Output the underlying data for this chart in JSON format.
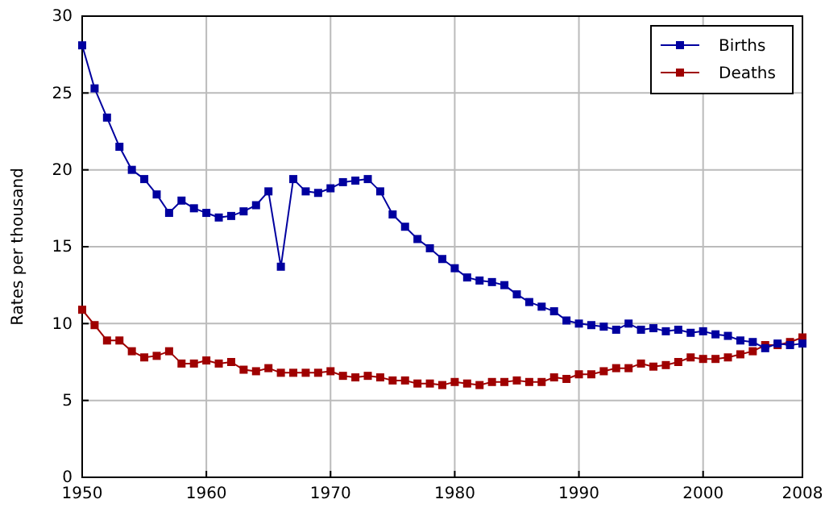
{
  "chart_data": {
    "type": "line",
    "ylabel": "Rates per thousand",
    "x": [
      1950,
      1951,
      1952,
      1953,
      1954,
      1955,
      1956,
      1957,
      1958,
      1959,
      1960,
      1961,
      1962,
      1963,
      1964,
      1965,
      1966,
      1967,
      1968,
      1969,
      1970,
      1971,
      1972,
      1973,
      1974,
      1975,
      1976,
      1977,
      1978,
      1979,
      1980,
      1981,
      1982,
      1983,
      1984,
      1985,
      1986,
      1987,
      1988,
      1989,
      1990,
      1991,
      1992,
      1993,
      1994,
      1995,
      1996,
      1997,
      1998,
      1999,
      2000,
      2001,
      2002,
      2003,
      2004,
      2005,
      2006,
      2007,
      2008
    ],
    "series": [
      {
        "name": "Births",
        "color": "#00009f",
        "values": [
          28.1,
          25.3,
          23.4,
          21.5,
          20.0,
          19.4,
          18.4,
          17.2,
          18.0,
          17.5,
          17.2,
          16.9,
          17.0,
          17.3,
          17.7,
          18.6,
          13.7,
          19.4,
          18.6,
          18.5,
          18.8,
          19.2,
          19.3,
          19.4,
          18.6,
          17.1,
          16.3,
          15.5,
          14.9,
          14.2,
          13.6,
          13.0,
          12.8,
          12.7,
          12.5,
          11.9,
          11.4,
          11.1,
          10.8,
          10.2,
          10.0,
          9.9,
          9.8,
          9.6,
          10.0,
          9.6,
          9.7,
          9.5,
          9.6,
          9.4,
          9.5,
          9.3,
          9.2,
          8.9,
          8.8,
          8.4,
          8.7,
          8.6,
          8.7
        ]
      },
      {
        "name": "Deaths",
        "color": "#9f0000",
        "values": [
          10.9,
          9.9,
          8.9,
          8.9,
          8.2,
          7.8,
          7.9,
          8.2,
          7.4,
          7.4,
          7.6,
          7.4,
          7.5,
          7.0,
          6.9,
          7.1,
          6.8,
          6.8,
          6.8,
          6.8,
          6.9,
          6.6,
          6.5,
          6.6,
          6.5,
          6.3,
          6.3,
          6.1,
          6.1,
          6.0,
          6.2,
          6.1,
          6.0,
          6.2,
          6.2,
          6.3,
          6.2,
          6.2,
          6.5,
          6.4,
          6.7,
          6.7,
          6.9,
          7.1,
          7.1,
          7.4,
          7.2,
          7.3,
          7.5,
          7.8,
          7.7,
          7.7,
          7.8,
          8.0,
          8.2,
          8.6,
          8.6,
          8.8,
          9.1
        ]
      }
    ],
    "xlim": [
      1950,
      2008
    ],
    "xticks": [
      1950,
      1960,
      1970,
      1980,
      1990,
      2000,
      2008
    ],
    "ylim": [
      0,
      30
    ],
    "yticks": [
      0,
      5,
      10,
      15,
      20,
      25,
      30
    ],
    "grid": true,
    "legend": "top right",
    "marker": "square",
    "line_style": "solid"
  }
}
